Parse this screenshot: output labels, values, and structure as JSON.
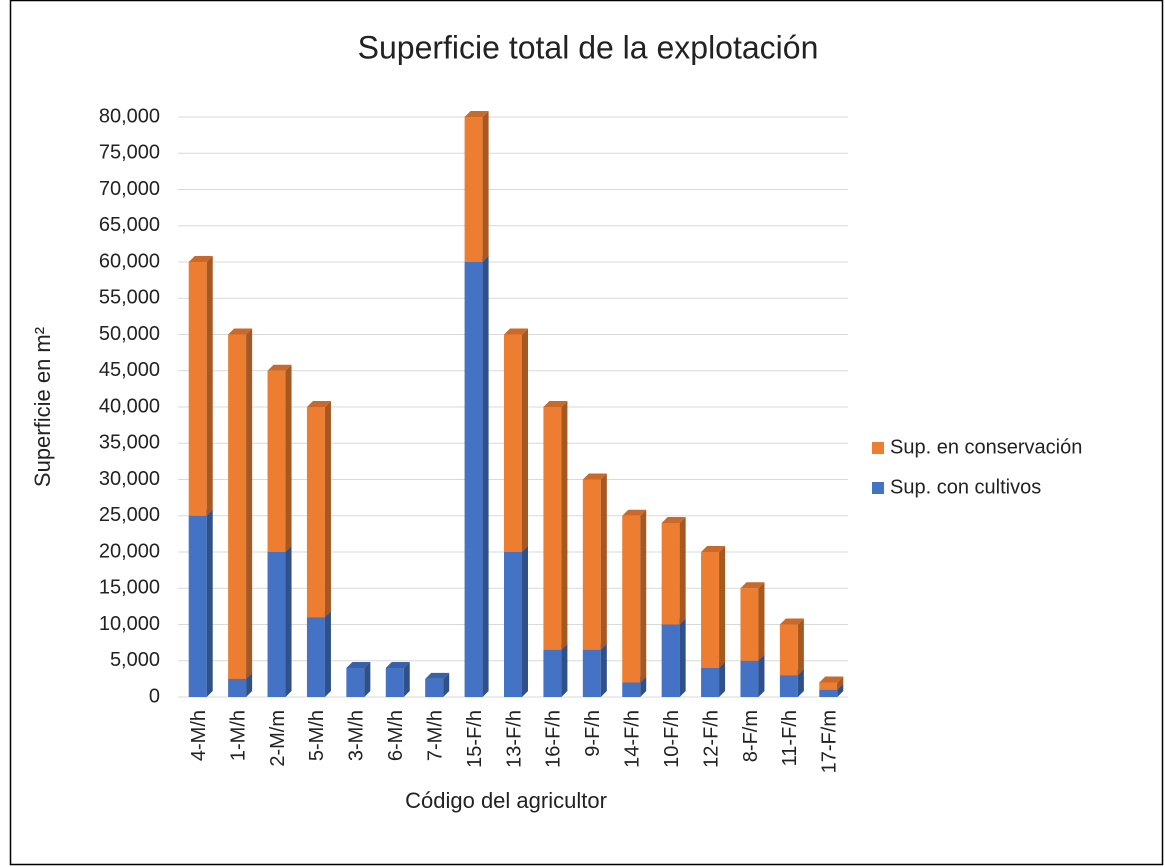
{
  "chart_data": {
    "type": "bar",
    "stacked": true,
    "title": "Superficie total de la explotación",
    "x_label": "Código del agricultor",
    "y_label": "Superficie en m²",
    "categories": [
      "4-M/h",
      "1-M/h",
      "2-M/m",
      "5-M/h",
      "3-M/h",
      "6-M/h",
      "7-M/h",
      "15-F/h",
      "13-F/h",
      "16-F/h",
      "9-F/h",
      "14-F/h",
      "10-F/h",
      "12-F/h",
      "8-F/m",
      "11-F/h",
      "17-F/m"
    ],
    "series": [
      {
        "name": "Sup. con cultivos",
        "color": "#4472c4",
        "values": [
          25000,
          2500,
          20000,
          11000,
          4000,
          4000,
          2500,
          60000,
          20000,
          6500,
          6500,
          2000,
          10000,
          4000,
          5000,
          3000,
          1000
        ]
      },
      {
        "name": "Sup. en conservación",
        "color": "#ed7d31",
        "values": [
          35000,
          47500,
          25000,
          29000,
          0,
          0,
          0,
          20000,
          30000,
          33500,
          23500,
          23000,
          14000,
          16000,
          10000,
          7000,
          1000
        ]
      }
    ],
    "ylim": [
      0,
      80000
    ],
    "yticks": [
      0,
      {
        "value": 5000,
        "label": "5,000"
      },
      {
        "value": 10000,
        "label": "10,000"
      },
      {
        "value": 15000,
        "label": "15,000"
      },
      {
        "value": 20000,
        "label": "20,000"
      },
      {
        "value": 25000,
        "label": "25,000"
      },
      {
        "value": 30000,
        "label": "30,000"
      },
      {
        "value": 35000,
        "label": "35,000"
      },
      {
        "value": 40000,
        "label": "40,000"
      },
      {
        "value": 45000,
        "label": "45,000"
      },
      {
        "value": 50000,
        "label": "50,000"
      },
      {
        "value": 55000,
        "label": "55,000"
      },
      {
        "value": 60000,
        "label": "60,000"
      },
      {
        "value": 65000,
        "label": "65,000"
      },
      {
        "value": 70000,
        "label": "70,000"
      },
      {
        "value": 75000,
        "label": "75,000"
      },
      {
        "value": 80000,
        "label": "80,000"
      }
    ],
    "grid": true,
    "legend": "right"
  }
}
